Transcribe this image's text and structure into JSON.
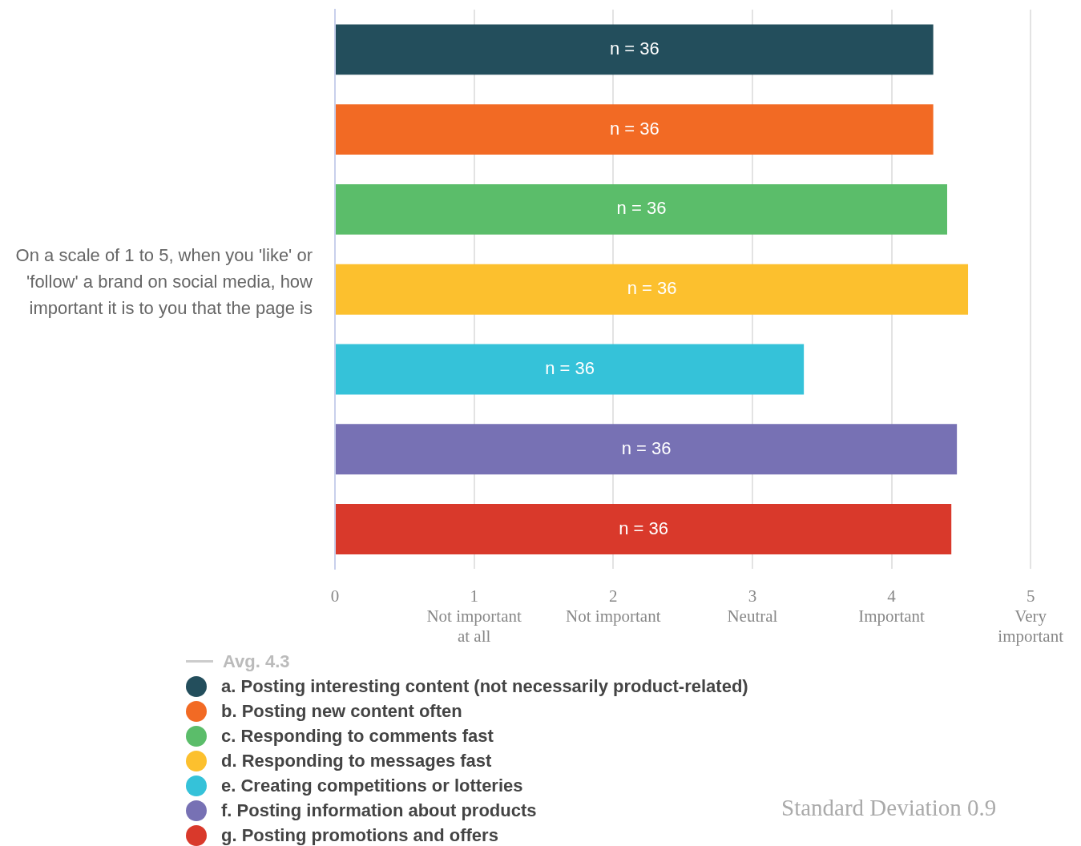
{
  "chart_data": {
    "type": "bar",
    "orientation": "horizontal",
    "ylabel": "On a scale of 1 to 5, when you 'like' or 'follow' a brand on social media, how important it is to you that the page  is",
    "categories": [
      null,
      null,
      null,
      null,
      null,
      null,
      null
    ],
    "series": [
      {
        "name": "a. Posting interesting content (not necessarily product-related)",
        "color": "#234e5c",
        "values": [
          4.3,
          null,
          null,
          null,
          null,
          null,
          null
        ]
      },
      {
        "name": "b. Posting new content often",
        "color": "#f26a24",
        "values": [
          null,
          4.3,
          null,
          null,
          null,
          null,
          null
        ]
      },
      {
        "name": "c. Responding to comments fast",
        "color": "#5bbd6a",
        "values": [
          null,
          null,
          4.4,
          null,
          null,
          null,
          null
        ]
      },
      {
        "name": "d. Responding to messages fast",
        "color": "#fcc02e",
        "values": [
          null,
          null,
          null,
          4.55,
          null,
          null,
          null
        ]
      },
      {
        "name": "e. Creating competitions or lotteries",
        "color": "#35c2d9",
        "values": [
          null,
          null,
          null,
          null,
          3.37,
          null,
          null
        ]
      },
      {
        "name": "f. Posting information about products",
        "color": "#7771b4",
        "values": [
          null,
          null,
          null,
          null,
          null,
          4.47,
          null
        ]
      },
      {
        "name": "g. Posting promotions and offers",
        "color": "#d9392b",
        "values": [
          null,
          null,
          null,
          null,
          null,
          null,
          4.43
        ]
      }
    ],
    "xlim": [
      0,
      5
    ],
    "xticks": [
      0,
      {
        "value": 1,
        "label": "1\nNot important\nat all"
      },
      {
        "value": 2,
        "label": "2\nNot important"
      },
      {
        "value": 3,
        "label": "3\nNeutral"
      },
      {
        "value": 4,
        "label": "4\nImportant"
      },
      {
        "value": 5,
        "label": "5\nVery\nimportant"
      }
    ],
    "grid": "x",
    "legend": "bottom left",
    "annotations": [
      "n = 36",
      "n = 36",
      "n = 36",
      "n = 36",
      "n = 36",
      "n = 36",
      "n = 36",
      "Avg. 4.3",
      "Standard Deviation 0.9"
    ]
  }
}
